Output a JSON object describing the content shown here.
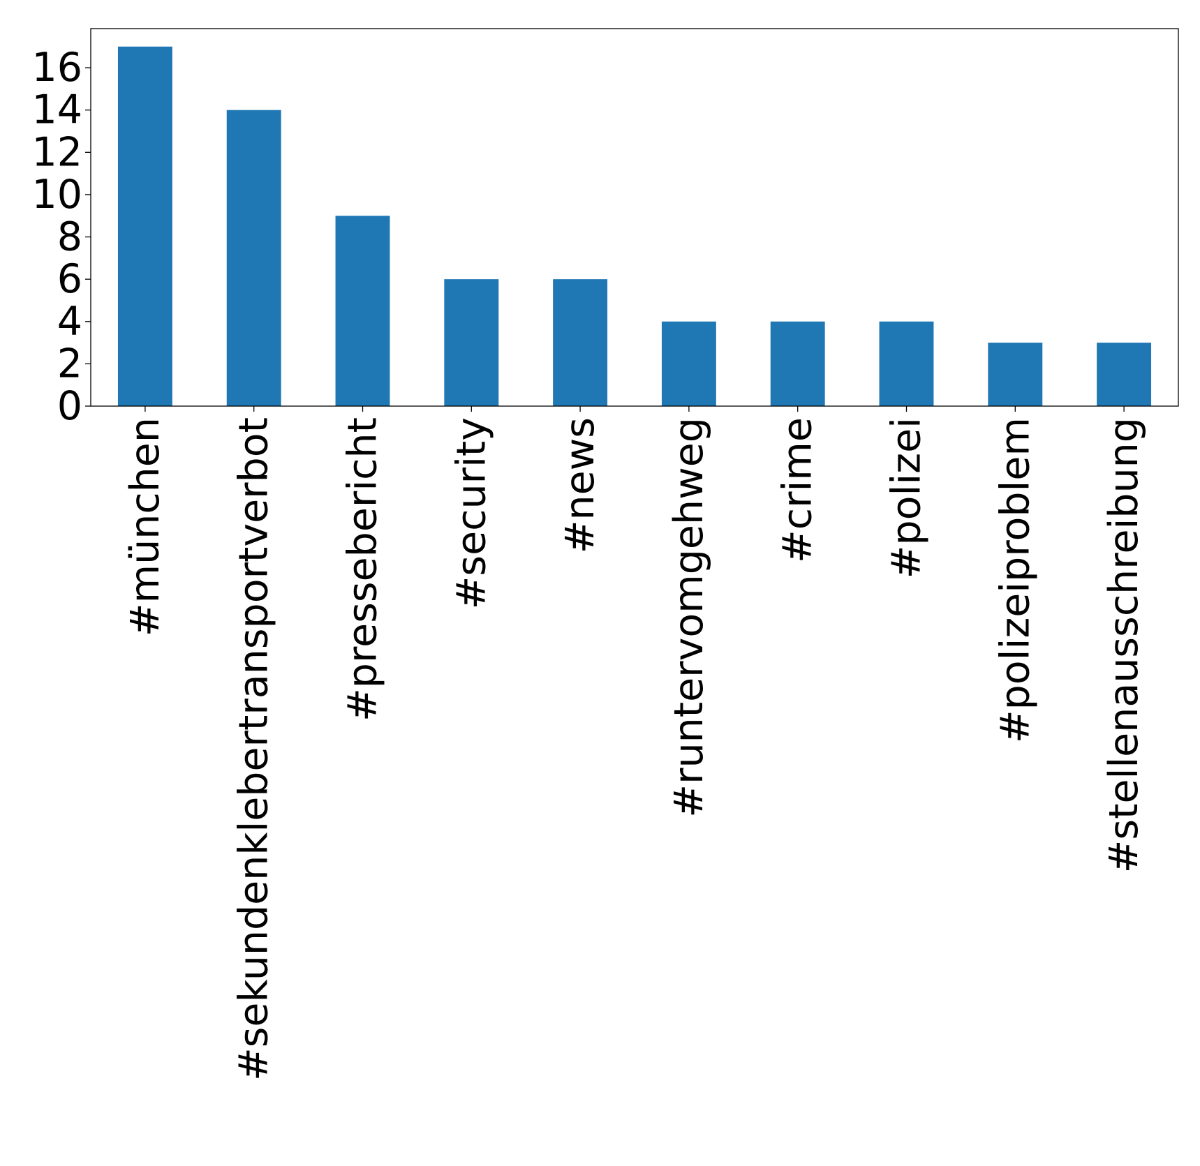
{
  "chart_data": {
    "type": "bar",
    "title": "",
    "xlabel": "",
    "ylabel": "",
    "categories": [
      "#münchen",
      "#sekundenklebertransportverbot",
      "#pressebericht",
      "#security",
      "#news",
      "#runtervomgehweg",
      "#crime",
      "#polizei",
      "#polizeiproblem",
      "#stellenausschreibung"
    ],
    "values": [
      17,
      14,
      9,
      6,
      6,
      4,
      4,
      4,
      3,
      3
    ],
    "ylim": [
      0,
      17.85
    ],
    "yticks": [
      "0",
      "2",
      "4",
      "6",
      "8",
      "10",
      "12",
      "14",
      "16"
    ],
    "bar_color": "#1f77b4",
    "grid": false,
    "legend": "none"
  }
}
